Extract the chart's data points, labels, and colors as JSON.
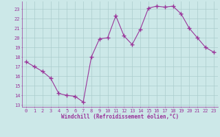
{
  "x": [
    0,
    1,
    2,
    3,
    4,
    5,
    6,
    7,
    8,
    9,
    10,
    11,
    12,
    13,
    14,
    15,
    16,
    17,
    18,
    19,
    20,
    21,
    22,
    23
  ],
  "y": [
    17.5,
    17.0,
    16.5,
    15.8,
    14.2,
    14.0,
    13.9,
    13.3,
    18.0,
    19.9,
    20.0,
    22.3,
    20.2,
    19.3,
    20.9,
    23.1,
    23.3,
    23.2,
    23.3,
    22.5,
    21.0,
    20.0,
    19.0,
    18.5
  ],
  "line_color": "#993399",
  "marker": "+",
  "marker_size": 4,
  "bg_color": "#cce8e8",
  "grid_color": "#aacccc",
  "xlabel": "Windchill (Refroidissement éolien,°C)",
  "xlabel_color": "#993399",
  "tick_color": "#993399",
  "ylim": [
    12.8,
    23.8
  ],
  "xlim": [
    -0.5,
    23.5
  ],
  "yticks": [
    13,
    14,
    15,
    16,
    17,
    18,
    19,
    20,
    21,
    22,
    23
  ],
  "xticks": [
    0,
    1,
    2,
    3,
    4,
    5,
    6,
    7,
    8,
    9,
    10,
    11,
    12,
    13,
    14,
    15,
    16,
    17,
    18,
    19,
    20,
    21,
    22,
    23
  ]
}
